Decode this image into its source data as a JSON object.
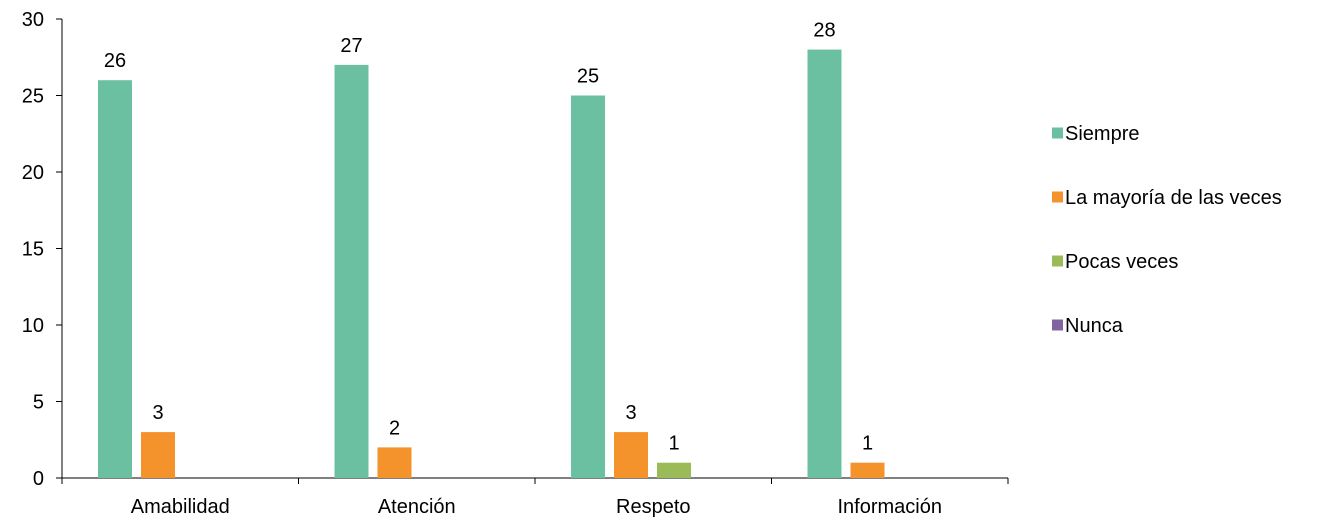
{
  "chart_data": {
    "type": "bar",
    "categories": [
      "Amabilidad",
      "Atención",
      "Respeto",
      "Información"
    ],
    "series": [
      {
        "name": "Siempre",
        "color": "#6ac0a0",
        "values": [
          26,
          27,
          25,
          28
        ]
      },
      {
        "name": "La mayoría de las veces",
        "color": "#f4922b",
        "values": [
          3,
          2,
          3,
          1
        ]
      },
      {
        "name": "Pocas veces",
        "color": "#9bbb59",
        "values": [
          0,
          0,
          1,
          0
        ]
      },
      {
        "name": "Nunca",
        "color": "#8064a2",
        "values": [
          0,
          0,
          0,
          0
        ]
      }
    ],
    "y_ticks": [
      0,
      5,
      10,
      15,
      20,
      25,
      30
    ],
    "ylim": [
      0,
      30
    ],
    "title": "",
    "xlabel": "",
    "ylabel": "",
    "grid": false,
    "legend_position": "right",
    "show_data_labels": true
  }
}
